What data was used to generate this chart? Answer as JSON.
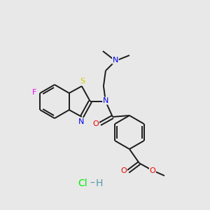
{
  "background_color": "#e8e8e8",
  "bond_color": "#1a1a1a",
  "atom_colors": {
    "F": "#ee00ee",
    "S": "#cccc00",
    "N": "#0000ee",
    "O": "#ee0000",
    "C": "#1a1a1a"
  },
  "hcl_color_cl": "#00ee00",
  "hcl_color_h": "#5599aa",
  "figsize": [
    3.0,
    3.0
  ],
  "dpi": 100
}
